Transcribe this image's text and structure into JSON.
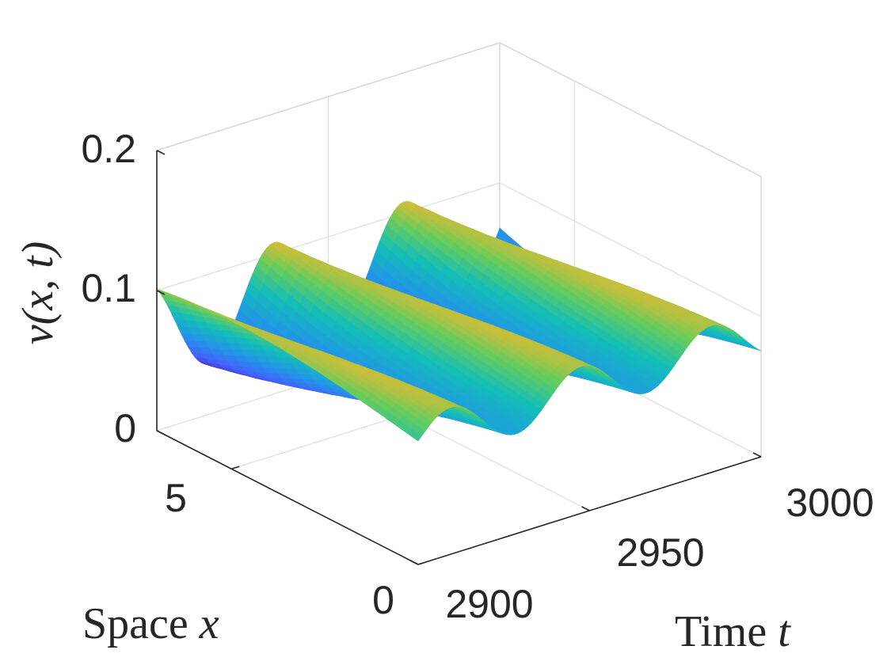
{
  "chart_data": {
    "type": "surface",
    "title": "",
    "xlabel": "Space",
    "xlabel_var": "x",
    "tlabel": "Time",
    "tlabel_var": "t",
    "zlabel": "v(x, t)",
    "x_range": [
      0,
      7
    ],
    "t_range": [
      2900,
      3000
    ],
    "zlim": [
      0,
      0.2
    ],
    "x_ticks": [
      "0",
      "5"
    ],
    "t_ticks": [
      "2900",
      "2950",
      "3000"
    ],
    "z_ticks": [
      "0",
      "0.1",
      "0.2"
    ],
    "x_tick_values": [
      0,
      5
    ],
    "t_tick_values": [
      2900,
      2950,
      3000
    ],
    "z_tick_values": [
      0,
      0.1,
      0.2
    ],
    "grid": true,
    "colormap": "parula",
    "colors": {
      "low": "#3E4FFE",
      "mid": "#20C0B8",
      "high": "#F2C22A"
    },
    "surface_model": {
      "mean": 0.08,
      "amplitude": 0.06,
      "period": 38,
      "mode_min": 0.28,
      "mode_max": 0.6
    }
  }
}
